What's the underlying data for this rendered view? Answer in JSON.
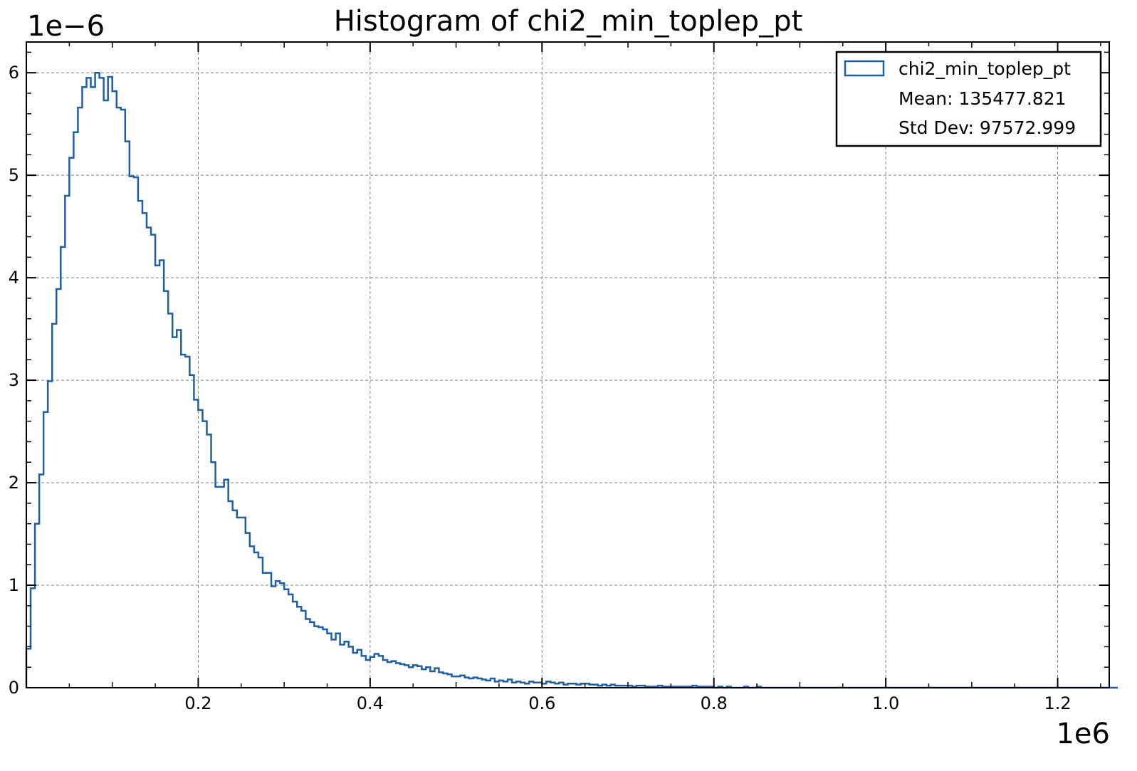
{
  "chart_data": {
    "type": "histogram",
    "title": "Histogram of chi2_min_toplep_pt",
    "x_offset_label": "1e6",
    "y_offset_label": "1e−6",
    "xlim": [
      0,
      1.26
    ],
    "ylim": [
      0,
      6.3
    ],
    "x_units_scale": 1000000,
    "y_units_scale": 1e-06,
    "x_ticks": [
      0.2,
      0.4,
      0.6,
      0.8,
      1.0,
      1.2
    ],
    "x_tick_labels": [
      "0.2",
      "0.4",
      "0.6",
      "0.8",
      "1.0",
      "1.2"
    ],
    "y_ticks": [
      0,
      1,
      2,
      3,
      4,
      5,
      6
    ],
    "y_tick_labels": [
      "0",
      "1",
      "2",
      "3",
      "4",
      "5",
      "6"
    ],
    "grid": true,
    "legend": {
      "placement": "top-right",
      "series_name": "chi2_min_toplep_pt",
      "mean_text": "Mean: 135477.821",
      "std_text": "Std Dev: 97572.999"
    },
    "series": [
      {
        "name": "chi2_min_toplep_pt",
        "color": "#1f5fa0",
        "x_start": 0.0,
        "bin_width": 0.005,
        "values": [
          0.38,
          0.97,
          1.6,
          2.08,
          2.69,
          2.99,
          3.55,
          3.89,
          4.3,
          4.8,
          5.17,
          5.42,
          5.66,
          5.86,
          5.95,
          5.86,
          6.0,
          5.95,
          5.73,
          5.96,
          5.82,
          5.66,
          5.64,
          5.33,
          4.99,
          4.98,
          4.75,
          4.63,
          4.49,
          4.42,
          4.12,
          4.17,
          3.87,
          3.65,
          3.42,
          3.49,
          3.25,
          3.23,
          3.05,
          2.81,
          2.71,
          2.6,
          2.47,
          2.2,
          1.96,
          1.96,
          2.03,
          1.82,
          1.73,
          1.66,
          1.66,
          1.51,
          1.38,
          1.32,
          1.27,
          1.12,
          1.12,
          0.99,
          1.04,
          1.02,
          0.96,
          0.91,
          0.84,
          0.79,
          0.75,
          0.67,
          0.64,
          0.6,
          0.59,
          0.57,
          0.53,
          0.47,
          0.53,
          0.42,
          0.45,
          0.4,
          0.34,
          0.37,
          0.31,
          0.27,
          0.3,
          0.33,
          0.31,
          0.27,
          0.25,
          0.26,
          0.24,
          0.23,
          0.22,
          0.2,
          0.22,
          0.21,
          0.18,
          0.2,
          0.16,
          0.19,
          0.15,
          0.14,
          0.13,
          0.11,
          0.11,
          0.12,
          0.1,
          0.09,
          0.1,
          0.09,
          0.08,
          0.07,
          0.09,
          0.06,
          0.07,
          0.06,
          0.08,
          0.05,
          0.06,
          0.05,
          0.04,
          0.06,
          0.05,
          0.05,
          0.04,
          0.06,
          0.05,
          0.04,
          0.05,
          0.03,
          0.04,
          0.04,
          0.03,
          0.04,
          0.04,
          0.03,
          0.03,
          0.02,
          0.03,
          0.02,
          0.03,
          0.02,
          0.02,
          0.02,
          0.02,
          0.01,
          0.02,
          0.02,
          0.01,
          0.01,
          0.01,
          0.02,
          0.01,
          0.01,
          0.01,
          0.01,
          0.01,
          0.01,
          0.01,
          0.02,
          0.01,
          0.01,
          0.01,
          0.01,
          0.0,
          0.01,
          0.0,
          0.01,
          0.0,
          0.0,
          0.0,
          0.01,
          0.0,
          0.0,
          0.01,
          0.0,
          0.0,
          0.0,
          0.0,
          0.0,
          0.0,
          0.0,
          0.0,
          0.0,
          0.0,
          0.0,
          0.0,
          0.0,
          0.0,
          0.0,
          0.0,
          0.0,
          0.0,
          0.0,
          0.0,
          0.0,
          0.0,
          0.0,
          0.0,
          0.0,
          0.0,
          0.0,
          0.0,
          0.0,
          0.0,
          0.0,
          0.0,
          0.0,
          0.0,
          0.0,
          0.0,
          0.0,
          0.0,
          0.0,
          0.0,
          0.0,
          0.0,
          0.0,
          0.0,
          0.0,
          0.0,
          0.0,
          0.0,
          0.0,
          0.0,
          0.0,
          0.0,
          0.0,
          0.0,
          0.0,
          0.0,
          0.0,
          0.0,
          0.0,
          0.0,
          0.0,
          0.0,
          0.0,
          0.0,
          0.0,
          0.0,
          0.0,
          0.0,
          0.0,
          0.0,
          0.0,
          0.0,
          0.0,
          0.0,
          0.0,
          0.0,
          0.0,
          0.0,
          0.0,
          0.0,
          0.0,
          0.0,
          0.0
        ]
      }
    ]
  }
}
